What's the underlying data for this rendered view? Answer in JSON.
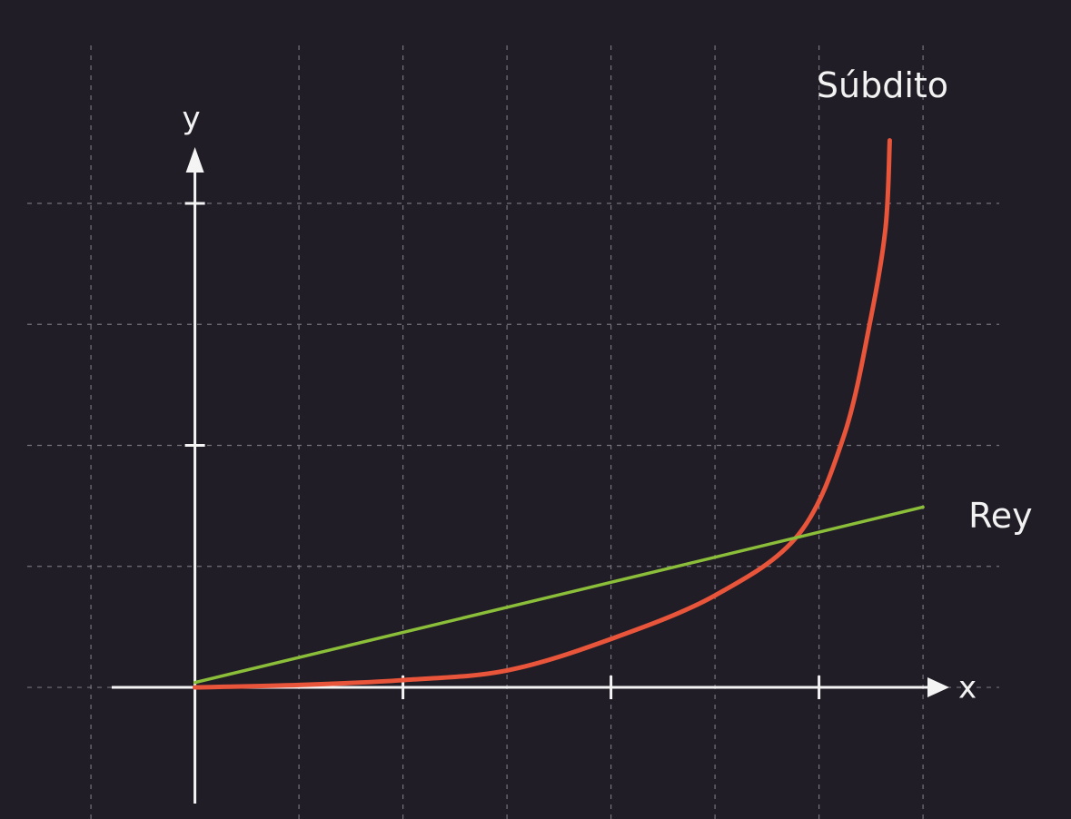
{
  "chart_data": {
    "type": "line",
    "x_label": "x",
    "y_label": "y",
    "xlim": [
      -0.4,
      3.6
    ],
    "ylim": [
      -0.48,
      2.3
    ],
    "xticks": [
      1,
      2,
      3
    ],
    "yticks": [
      1,
      2
    ],
    "xgrid": [
      -0.5,
      0.5,
      1,
      1.5,
      2,
      2.5,
      3,
      3.5
    ],
    "ygrid": [
      0,
      0.5,
      1,
      1.5,
      2
    ],
    "series": [
      {
        "name": "Súbdito",
        "color": "#e8553a",
        "x": [
          0,
          0.5,
          1,
          1.5,
          2,
          2.5,
          2.9,
          3.12,
          3.25,
          3.32,
          3.34
        ],
        "values": [
          0,
          0.01,
          0.03,
          0.07,
          0.2,
          0.38,
          0.63,
          1.04,
          1.53,
          1.9,
          2.26
        ]
      },
      {
        "name": "Rey",
        "color": "#8bbf3a",
        "x": [
          0,
          3.5
        ],
        "values": [
          0.02,
          0.745
        ]
      }
    ]
  }
}
